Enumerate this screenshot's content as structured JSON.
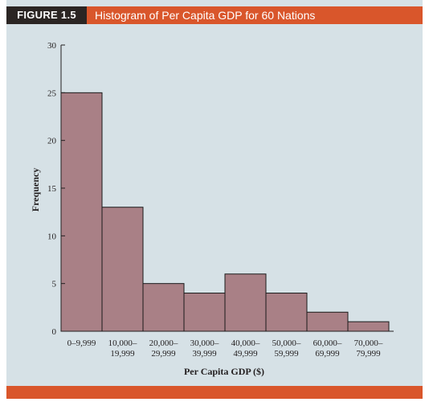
{
  "figure": {
    "label": "FIGURE 1.5",
    "title": "Histogram of Per Capita GDP for 60 Nations"
  },
  "colors": {
    "header": "#d9562b",
    "label_bg": "#2b2523",
    "panel": "#d6e1e6",
    "bar_fill": "#a98086",
    "bar_stroke": "#1a1a1a"
  },
  "chart_data": {
    "type": "bar",
    "title": "Histogram of Per Capita GDP for 60 Nations",
    "xlabel": "Per Capita GDP ($)",
    "ylabel": "Frequency",
    "ylim": [
      0,
      30
    ],
    "yticks": [
      "0",
      "5",
      "10",
      "15",
      "20",
      "25",
      "30"
    ],
    "categories": [
      [
        "0–9,999",
        ""
      ],
      [
        "10,000–",
        "19,999"
      ],
      [
        "20,000–",
        "29,999"
      ],
      [
        "30,000–",
        "39,999"
      ],
      [
        "40,000–",
        "49,999"
      ],
      [
        "50,000–",
        "59,999"
      ],
      [
        "60,000–",
        "69,999"
      ],
      [
        "70,000–",
        "79,999"
      ]
    ],
    "values": [
      25,
      13,
      5,
      4,
      6,
      4,
      2,
      1
    ],
    "grid": false,
    "legend": "none"
  }
}
